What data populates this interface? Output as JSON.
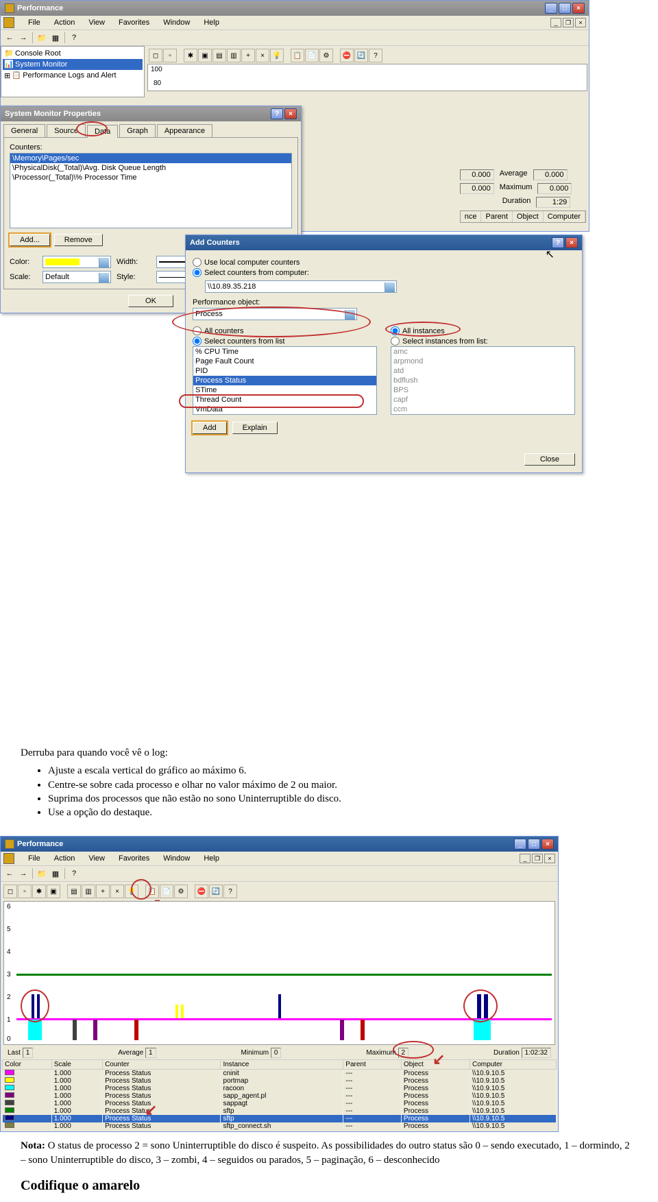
{
  "main_window": {
    "title": "Performance",
    "menus": [
      "File",
      "Action",
      "View",
      "Favorites",
      "Window",
      "Help"
    ],
    "tree": [
      {
        "label": "Console Root",
        "icon": "folder"
      },
      {
        "label": "System Monitor",
        "icon": "monitor",
        "selected": true
      },
      {
        "label": "Performance Logs and Alert",
        "icon": "log"
      }
    ],
    "y_ticks": [
      "100",
      "80"
    ],
    "stats": {
      "row1": {
        "val1": "0.000",
        "label1": "Average",
        "val2": "0.000"
      },
      "row2": {
        "val1": "0.000",
        "label1": "Maximum",
        "val2": "0.000"
      },
      "row3": {
        "label1": "Duration",
        "val2": "1:29"
      }
    },
    "columns": [
      "nce",
      "Parent",
      "Object",
      "Computer"
    ]
  },
  "props_dialog": {
    "title": "System Monitor Properties",
    "tabs": [
      "General",
      "Source",
      "Data",
      "Graph",
      "Appearance"
    ],
    "active_tab": "Data",
    "counters_label": "Counters:",
    "counters": [
      {
        "text": "\\Memory\\Pages/sec",
        "selected": true
      },
      {
        "text": "\\PhysicalDisk(_Total)\\Avg. Disk Queue Length"
      },
      {
        "text": "\\Processor(_Total)\\% Processor Time"
      }
    ],
    "add_btn": "Add...",
    "remove_btn": "Remove",
    "color_label": "Color:",
    "width_label": "Width:",
    "scale_label": "Scale:",
    "scale_value": "Default",
    "style_label": "Style:",
    "ok_btn": "OK"
  },
  "add_counters": {
    "title": "Add Counters",
    "opt_local": "Use local computer counters",
    "opt_remote": "Select counters from computer:",
    "computer": "\\\\10.89.35.218",
    "perf_obj_label": "Performance object:",
    "perf_obj": "Process",
    "opt_all_counters": "All counters",
    "opt_sel_counters": "Select counters from list",
    "opt_all_inst": "All instances",
    "opt_sel_inst": "Select instances from list:",
    "counter_list": [
      "% CPU Time",
      "Page Fault Count",
      "PID",
      "Process Status",
      "STime",
      "Thread Count",
      "VmData"
    ],
    "counter_selected": "Process Status",
    "instance_list": [
      "amc",
      "arpmond",
      "atd",
      "bdflush",
      "BPS",
      "capf",
      "ccm"
    ],
    "add_btn": "Add",
    "explain_btn": "Explain",
    "close_btn": "Close"
  },
  "doc": {
    "intro": "Derruba para quando você vê o log:",
    "bullets": [
      "Ajuste a escala vertical do gráfico ao máximo 6.",
      "Centre-se sobre cada processo e olhar no valor máximo de 2 ou maior.",
      "Suprima dos processos que não estão no sono Uninterruptible do disco.",
      "Use a opção do destaque."
    ],
    "note_label": "Nota:",
    "note_text": " O status de processo 2 = sono Uninterruptible do disco é suspeito. As possibilidades do outro status são 0 – sendo executado, 1 – dormindo, 2 – sono Uninterruptible do disco, 3 – zombi, 4 – seguidos ou parados, 5 – paginação, 6 – desconhecido",
    "heading": "Codifique o amarelo"
  },
  "screenshot2": {
    "title": "Performance",
    "menus": [
      "File",
      "Action",
      "View",
      "Favorites",
      "Window",
      "Help"
    ],
    "y_axis": [
      6,
      5,
      4,
      3,
      2,
      1,
      0
    ],
    "stats_labels": {
      "last": "Last",
      "avg": "Average",
      "min": "Minimum",
      "max": "Maximum",
      "dur": "Duration"
    },
    "stats_vals": {
      "last": "1",
      "avg": "1",
      "min": "0",
      "max": "2",
      "dur": "1:02:32"
    },
    "table_cols": [
      "Color",
      "Scale",
      "Counter",
      "Instance",
      "Parent",
      "Object",
      "Computer"
    ],
    "rows": [
      {
        "color": "#ff00ff",
        "scale": "1.000",
        "counter": "Process Status",
        "instance": "cninit",
        "parent": "---",
        "object": "Process",
        "computer": "\\\\10.9.10.5"
      },
      {
        "color": "#ffff00",
        "scale": "1.000",
        "counter": "Process Status",
        "instance": "portmap",
        "parent": "---",
        "object": "Process",
        "computer": "\\\\10.9.10.5"
      },
      {
        "color": "#00ffff",
        "scale": "1.000",
        "counter": "Process Status",
        "instance": "racoon",
        "parent": "---",
        "object": "Process",
        "computer": "\\\\10.9.10.5"
      },
      {
        "color": "#800080",
        "scale": "1.000",
        "counter": "Process Status",
        "instance": "sapp_agent.pl",
        "parent": "---",
        "object": "Process",
        "computer": "\\\\10.9.10.5"
      },
      {
        "color": "#404040",
        "scale": "1.000",
        "counter": "Process Status",
        "instance": "sappagt",
        "parent": "---",
        "object": "Process",
        "computer": "\\\\10.9.10.5"
      },
      {
        "color": "#008000",
        "scale": "1.000",
        "counter": "Process Status",
        "instance": "sftp",
        "parent": "---",
        "object": "Process",
        "computer": "\\\\10.9.10.5"
      },
      {
        "color": "#000080",
        "scale": "1.000",
        "counter": "Process Status",
        "instance": "sftp",
        "parent": "---",
        "object": "Process",
        "computer": "\\\\10.9.10.5",
        "sel": true
      },
      {
        "color": "#808040",
        "scale": "1.000",
        "counter": "Process Status",
        "instance": "sftp_connect.sh",
        "parent": "---",
        "object": "Process",
        "computer": "\\\\10.9.10.5"
      }
    ]
  }
}
